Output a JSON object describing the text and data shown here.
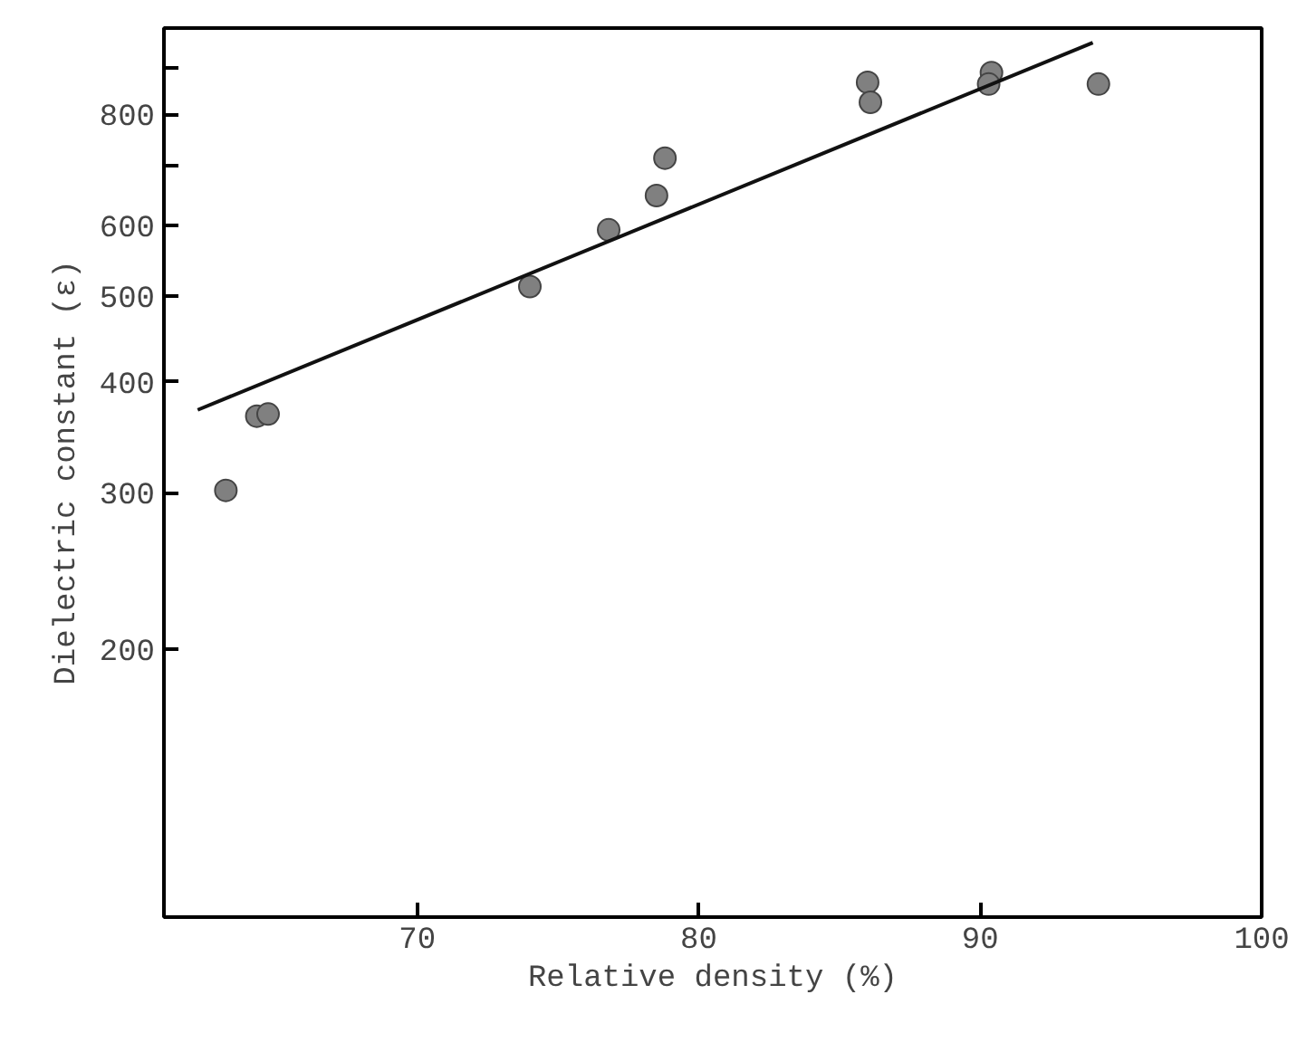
{
  "chart_data": {
    "type": "scatter",
    "xlabel": "Relative density (%)",
    "ylabel": "Dielectric constant (ε)",
    "log": "y",
    "grid": false,
    "xlim": [
      61,
      100
    ],
    "ylim": [
      100,
      1000
    ],
    "xticks": [
      70,
      80,
      90,
      100
    ],
    "yticks": [
      200,
      300,
      400,
      500,
      600,
      {
        "value": 700,
        "label": null
      },
      800,
      {
        "value": 900,
        "label": null
      }
    ],
    "series": [
      {
        "marker": "circle",
        "color": "#808080",
        "x": [
          63.2,
          64.3,
          64.7,
          74.0,
          76.8,
          78.5,
          78.8,
          86.0,
          86.1,
          90.4,
          90.3,
          94.2
        ],
        "values": [
          302,
          366,
          368,
          512,
          593,
          648,
          714,
          869,
          825,
          891,
          865,
          865
        ]
      },
      {
        "type": "line",
        "marker": "none",
        "color": "#111111",
        "line_style": "solid",
        "x": [
          62.2,
          94.0
        ],
        "values": [
          372,
          963
        ]
      }
    ]
  }
}
